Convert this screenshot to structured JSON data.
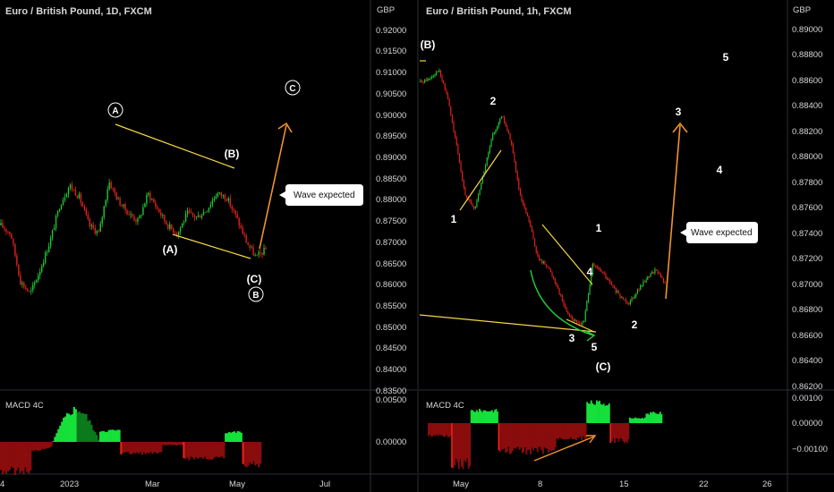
{
  "chart_data": [
    {
      "type": "candlestick",
      "title": "Euro / British Pound, 1D, FXCM",
      "unit": "GBP",
      "yticks": [
        "0.92000",
        "0.91500",
        "0.91000",
        "0.90500",
        "0.90000",
        "0.89500",
        "0.89000",
        "0.88500",
        "0.88000",
        "0.87500",
        "0.87000",
        "0.86500",
        "0.86000",
        "0.85500",
        "0.85000",
        "0.84500",
        "0.84000",
        "0.83500"
      ],
      "ylim": [
        0.835,
        0.925
      ],
      "xticks": [
        "4",
        "2023",
        "Mar",
        "May",
        "Jul"
      ],
      "trend_path": [
        0.876,
        0.874,
        0.862,
        0.859,
        0.865,
        0.872,
        0.881,
        0.886,
        0.883,
        0.876,
        0.874,
        0.887,
        0.882,
        0.879,
        0.877,
        0.884,
        0.88,
        0.876,
        0.874,
        0.879,
        0.878,
        0.88,
        0.884,
        0.883,
        0.878,
        0.872,
        0.868,
        0.87
      ],
      "waves": [
        "A",
        "(A)",
        "(B)",
        "(C)",
        "B",
        "C"
      ],
      "annotation": "Wave expected",
      "macd": {
        "label": "MACD 4C",
        "yticks": [
          "0.00500",
          "0.00000"
        ]
      }
    },
    {
      "type": "candlestick",
      "title": "Euro / British Pound, 1h, FXCM",
      "unit": "GBP",
      "yticks": [
        "0.89000",
        "0.88800",
        "0.88600",
        "0.88400",
        "0.88200",
        "0.88000",
        "0.87800",
        "0.87600",
        "0.87400",
        "0.87200",
        "0.87000",
        "0.86800",
        "0.86600",
        "0.86400",
        "0.86200"
      ],
      "ylim": [
        0.8615,
        0.8905
      ],
      "xticks": [
        "May",
        "8",
        "15",
        "22",
        "26"
      ],
      "trend_path": [
        0.8862,
        0.8865,
        0.8872,
        0.885,
        0.881,
        0.877,
        0.876,
        0.879,
        0.882,
        0.8835,
        0.8815,
        0.877,
        0.875,
        0.872,
        0.8715,
        0.87,
        0.868,
        0.867,
        0.8668,
        0.8715,
        0.871,
        0.87,
        0.869,
        0.8685,
        0.8695,
        0.8705,
        0.8712,
        0.87
      ],
      "waves": [
        "(B)",
        "1",
        "2",
        "3",
        "4",
        "5",
        "(C)",
        "1",
        "2",
        "3",
        "4",
        "5"
      ],
      "annotation": "Wave expected",
      "macd": {
        "label": "MACD 4C",
        "yticks": [
          "0.00100",
          "0.00000",
          "−0.00100"
        ]
      }
    }
  ]
}
